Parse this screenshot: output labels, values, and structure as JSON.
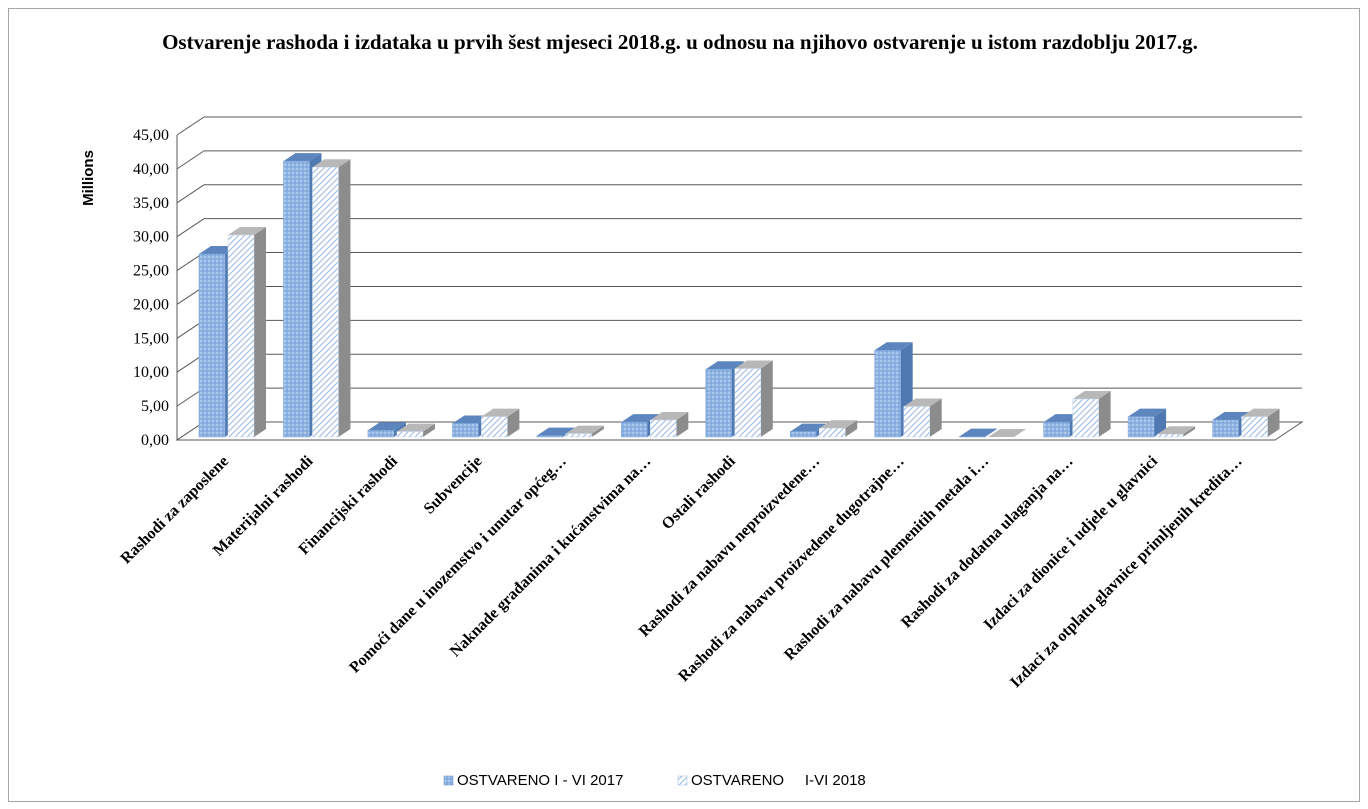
{
  "chart_data": {
    "type": "bar",
    "title": "Ostvarenje rashoda i izdataka  u prvih šest mjeseci 2018.g. u odnosu na njihovo ostvarenje u istom razdoblju 2017.g.",
    "ylabel": "Millions",
    "ylim": [
      0,
      45
    ],
    "yticks": [
      "0,00",
      "5,00",
      "10,00",
      "15,00",
      "20,00",
      "25,00",
      "30,00",
      "35,00",
      "40,00",
      "45,00"
    ],
    "grid": true,
    "legend_position": "bottom",
    "categories": [
      "Rashodi za zaposlene",
      "Materijalni rashodi",
      "Financijski rashodi",
      "Subvencije",
      "Pomoći dane u inozemstvo i unutar općeg…",
      "Naknade građanima i kućanstvima na…",
      "Ostali rashodi",
      "Rashodi za nabavu neproizvedene…",
      "Rashodi za nabavu proizvedene dugotrajne…",
      "Rashodi za nabavu plemenitih metala i…",
      "Rashodi za dodatna ulaganja na…",
      "Izdaci za dionice i udjele u glavnici",
      "Izdaci za otplatu glavnice primljenih kredita…"
    ],
    "series": [
      {
        "name": "OSTVARENO I - VI 2017",
        "values": [
          27.0,
          40.7,
          1.0,
          2.0,
          0.2,
          2.2,
          10.0,
          0.8,
          12.8,
          0.05,
          2.2,
          3.0,
          2.5
        ]
      },
      {
        "name": "OSTVARENO     I-VI 2018",
        "values": [
          29.8,
          39.8,
          0.8,
          3.0,
          0.5,
          2.5,
          10.1,
          1.3,
          4.5,
          0.0,
          5.6,
          0.4,
          3.0
        ]
      }
    ],
    "colors": {
      "series1_front": "#8fb4e3",
      "series1_side": "#4f79b0",
      "series1_top": "#5d86be",
      "series2_front": "#ffffff",
      "series2_pattern": "#9dbde6",
      "series2_side": "#8c8c8c",
      "series2_top": "#b8b8b8",
      "grid": "#595959"
    }
  }
}
